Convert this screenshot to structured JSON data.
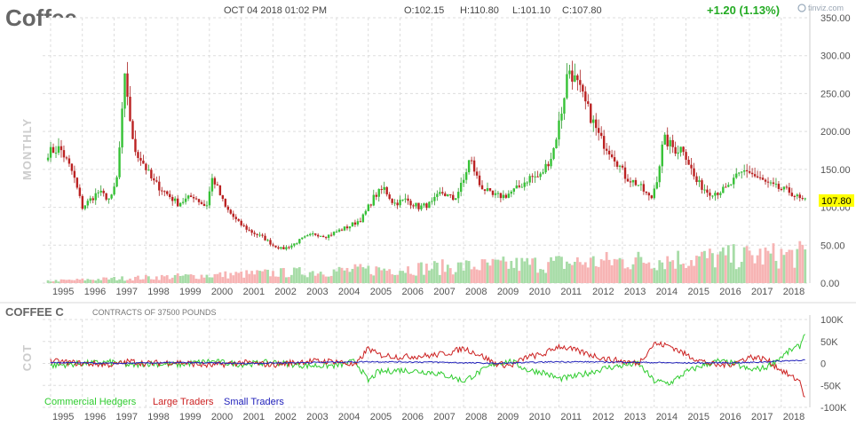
{
  "chart_data": [
    {
      "type": "candlestick",
      "title": "Coffee",
      "header": {
        "date": "OCT 04 2018 01:02 PM",
        "open": "O:102.15",
        "high": "H:110.80",
        "low": "L:101.10",
        "close": "C:107.80",
        "change": "+1.20 (1.13%)",
        "brand": "finviz.com"
      },
      "ylabel": "MONTHLY",
      "ylim": [
        0,
        350
      ],
      "yticks": [
        "350.00",
        "300.00",
        "250.00",
        "200.00",
        "150.00",
        "100.00",
        "50.00",
        "0.00"
      ],
      "last_price_label": "107.80",
      "x_tick_labels": [
        "1995",
        "1996",
        "1997",
        "1998",
        "1999",
        "2000",
        "2001",
        "2002",
        "2003",
        "2004",
        "2005",
        "2006",
        "2007",
        "2008",
        "2009",
        "2010",
        "2011",
        "2012",
        "2013",
        "2014",
        "2015",
        "2016",
        "2017",
        "2018"
      ],
      "price_anchors": {
        "x": [
          1994.9,
          1995.3,
          1995.7,
          1996.0,
          1996.5,
          1996.9,
          1997.1,
          1997.35,
          1997.6,
          1997.9,
          1998.2,
          1998.6,
          1999.0,
          1999.5,
          1999.9,
          2000.1,
          2000.5,
          2000.9,
          2001.3,
          2001.7,
          2002.0,
          2002.3,
          2002.6,
          2002.9,
          2003.3,
          2003.7,
          2004.0,
          2004.4,
          2004.8,
          2005.2,
          2005.5,
          2005.8,
          2006.2,
          2006.6,
          2007.0,
          2007.3,
          2007.7,
          2008.0,
          2008.2,
          2008.5,
          2008.9,
          2009.3,
          2009.7,
          2010.1,
          2010.4,
          2010.8,
          2011.1,
          2011.3,
          2011.6,
          2011.9,
          2012.3,
          2012.7,
          2013.1,
          2013.5,
          2013.9,
          2014.1,
          2014.3,
          2014.7,
          2014.9,
          2015.3,
          2015.7,
          2016.0,
          2016.3,
          2016.6,
          2016.9,
          2017.2,
          2017.6,
          2017.9,
          2018.3,
          2018.6,
          2018.76
        ],
        "y": [
          172,
          178,
          145,
          100,
          120,
          110,
          140,
          275,
          180,
          160,
          135,
          120,
          105,
          115,
          100,
          140,
          100,
          80,
          68,
          60,
          50,
          45,
          50,
          58,
          65,
          62,
          68,
          75,
          85,
          115,
          125,
          105,
          110,
          100,
          105,
          120,
          110,
          135,
          165,
          130,
          115,
          115,
          125,
          140,
          140,
          170,
          230,
          285,
          260,
          230,
          190,
          170,
          140,
          130,
          110,
          140,
          190,
          175,
          180,
          135,
          120,
          120,
          125,
          140,
          150,
          140,
          130,
          125,
          120,
          110,
          107.8
        ]
      },
      "volume_note": "monthly volume bars, green for up months and pink for down months"
    },
    {
      "type": "line",
      "title": "COFFEE C",
      "subtitle": "CONTRACTS OF 37500 POUNDS",
      "ylabel": "COT",
      "ylim": [
        -100000,
        100000
      ],
      "yticks": [
        "100K",
        "50K",
        "0",
        "-50K",
        "-100K"
      ],
      "x_tick_labels": [
        "1995",
        "1996",
        "1997",
        "1998",
        "1999",
        "2000",
        "2001",
        "2002",
        "2003",
        "2004",
        "2005",
        "2006",
        "2007",
        "2008",
        "2009",
        "2010",
        "2011",
        "2012",
        "2013",
        "2014",
        "2015",
        "2016",
        "2017",
        "2018"
      ],
      "legend": [
        "Commercial Hedgers",
        "Large Traders",
        "Small Traders"
      ],
      "series": [
        {
          "name": "Commercial Hedgers",
          "color": "#2fcc2f",
          "x": [
            1995.0,
            1996.0,
            1997.0,
            1997.5,
            1998.0,
            1999.0,
            2000.0,
            2001.0,
            2002.0,
            2003.0,
            2004.0,
            2004.6,
            2005.0,
            2005.3,
            2006.0,
            2007.0,
            2007.6,
            2008.0,
            2008.5,
            2009.0,
            2009.5,
            2010.0,
            2010.5,
            2011.0,
            2011.5,
            2012.0,
            2012.5,
            2013.0,
            2013.5,
            2014.0,
            2014.5,
            2015.0,
            2015.5,
            2016.0,
            2016.5,
            2017.0,
            2017.5,
            2018.0,
            2018.3,
            2018.6,
            2018.78
          ],
          "y": [
            -5000,
            0,
            3000,
            -5000,
            0,
            -3000,
            5000,
            -2000,
            3000,
            -5000,
            -5000,
            5000,
            -40000,
            -20000,
            -15000,
            -20000,
            -30000,
            -40000,
            -20000,
            0,
            5000,
            -15000,
            -20000,
            -35000,
            -30000,
            -20000,
            -10000,
            -5000,
            0,
            -40000,
            -45000,
            -20000,
            -5000,
            5000,
            0,
            -15000,
            -10000,
            15000,
            30000,
            40000,
            80000
          ]
        },
        {
          "name": "Large Traders",
          "color": "#cc2222",
          "x": [
            1995.0,
            1996.0,
            1997.0,
            1997.5,
            1998.0,
            1999.0,
            2000.0,
            2001.0,
            2002.0,
            2003.0,
            2004.0,
            2004.6,
            2005.0,
            2005.3,
            2006.0,
            2007.0,
            2007.6,
            2008.0,
            2008.5,
            2009.0,
            2009.5,
            2010.0,
            2010.5,
            2011.0,
            2011.5,
            2012.0,
            2012.5,
            2013.0,
            2013.5,
            2014.0,
            2014.5,
            2015.0,
            2015.5,
            2016.0,
            2016.5,
            2017.0,
            2017.5,
            2018.0,
            2018.3,
            2018.6,
            2018.78
          ],
          "y": [
            5000,
            0,
            -3000,
            5000,
            0,
            3000,
            -5000,
            2000,
            -3000,
            5000,
            5000,
            -5000,
            35000,
            20000,
            15000,
            18000,
            25000,
            35000,
            20000,
            0,
            -5000,
            15000,
            20000,
            40000,
            30000,
            20000,
            10000,
            5000,
            0,
            45000,
            40000,
            20000,
            5000,
            -5000,
            0,
            15000,
            10000,
            -15000,
            -30000,
            -40000,
            -90000
          ]
        },
        {
          "name": "Small Traders",
          "color": "#2222bb",
          "x": [
            1995.0,
            1997.0,
            1999.0,
            2001.0,
            2003.0,
            2005.0,
            2007.0,
            2009.0,
            2011.0,
            2013.0,
            2015.0,
            2017.0,
            2018.78
          ],
          "y": [
            2000,
            0,
            2000,
            0,
            2000,
            4000,
            3000,
            0,
            4000,
            3000,
            1000,
            2000,
            8000
          ]
        }
      ]
    }
  ]
}
